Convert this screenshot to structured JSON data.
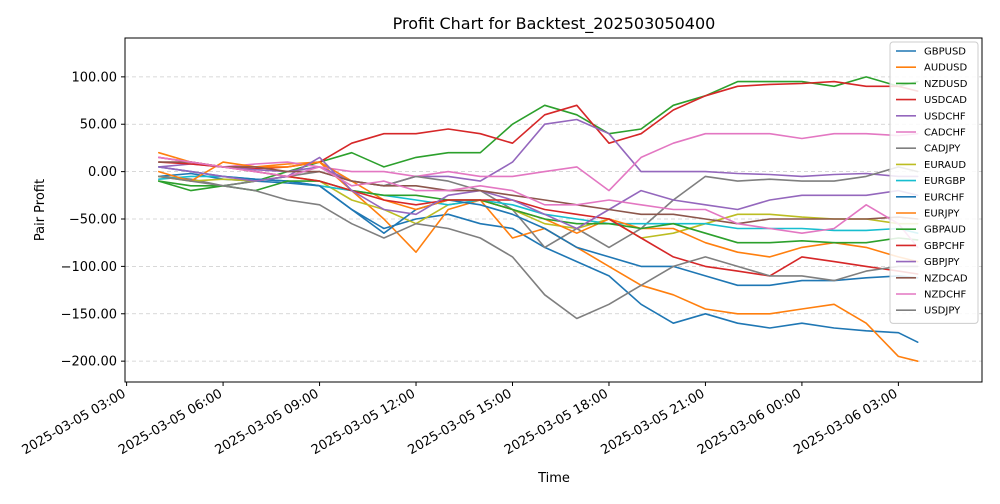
{
  "chart_data": {
    "type": "line",
    "title": "Profit Chart for Backtest_202503050400",
    "xlabel": "Time",
    "ylabel": "Pair Profit",
    "x_unit": "hours since 2025-03-05 00:00",
    "xlim": [
      2.95,
      29.6
    ],
    "ylim": [
      -222,
      141
    ],
    "x_ticks": [
      {
        "label": "2025-03-05 03:00",
        "value": 3
      },
      {
        "label": "2025-03-05 06:00",
        "value": 6
      },
      {
        "label": "2025-03-05 09:00",
        "value": 9
      },
      {
        "label": "2025-03-05 12:00",
        "value": 12
      },
      {
        "label": "2025-03-05 15:00",
        "value": 15
      },
      {
        "label": "2025-03-05 18:00",
        "value": 18
      },
      {
        "label": "2025-03-05 21:00",
        "value": 21
      },
      {
        "label": "2025-03-06 00:00",
        "value": 24
      },
      {
        "label": "2025-03-06 03:00",
        "value": 27
      }
    ],
    "y_ticks": [
      {
        "label": "100.00",
        "value": 100
      },
      {
        "label": "50.00",
        "value": 50
      },
      {
        "label": "0.00",
        "value": 0
      },
      {
        "label": "−50.00",
        "value": -50
      },
      {
        "label": "−100.00",
        "value": -100
      },
      {
        "label": "−150.00",
        "value": -150
      },
      {
        "label": "−200.00",
        "value": -200
      }
    ],
    "grid": {
      "y": true,
      "x": false
    },
    "legend": {
      "placement": "top-right"
    },
    "series": [
      {
        "name": "GBPUSD",
        "color": "#1f77b4",
        "x": [
          4,
          5,
          6,
          7,
          8,
          9,
          10,
          11,
          12,
          13,
          14,
          15,
          16,
          17,
          18,
          19,
          20,
          21,
          22,
          23,
          24,
          25,
          26,
          27,
          27.6
        ],
        "y": [
          -5,
          -2,
          -8,
          -10,
          -12,
          -15,
          -40,
          -60,
          -50,
          -45,
          -55,
          -60,
          -80,
          -95,
          -110,
          -140,
          -160,
          -150,
          -160,
          -165,
          -160,
          -165,
          -168,
          -170,
          -180
        ]
      },
      {
        "name": "AUDUSD",
        "color": "#ff7f0e",
        "x": [
          4,
          5,
          6,
          7,
          8,
          9,
          10,
          11,
          12,
          13,
          14,
          15,
          16,
          17,
          18,
          19,
          20,
          21,
          22,
          23,
          24,
          25,
          26,
          27,
          27.6
        ],
        "y": [
          20,
          10,
          5,
          5,
          8,
          10,
          -20,
          -50,
          -85,
          -40,
          -30,
          -70,
          -60,
          -80,
          -100,
          -120,
          -130,
          -145,
          -150,
          -150,
          -145,
          -140,
          -160,
          -195,
          -200
        ]
      },
      {
        "name": "NZDUSD",
        "color": "#2ca02c",
        "x": [
          4,
          5,
          6,
          7,
          8,
          9,
          10,
          11,
          12,
          13,
          14,
          15,
          16,
          17,
          18,
          19,
          20,
          21,
          22,
          23,
          24,
          25,
          26,
          27,
          27.6
        ],
        "y": [
          -10,
          -20,
          -15,
          -10,
          0,
          10,
          20,
          5,
          15,
          20,
          20,
          50,
          70,
          60,
          40,
          45,
          70,
          80,
          95,
          95,
          95,
          90,
          100,
          90,
          95
        ]
      },
      {
        "name": "USDCAD",
        "color": "#d62728",
        "x": [
          4,
          5,
          6,
          7,
          8,
          9,
          10,
          11,
          12,
          13,
          14,
          15,
          16,
          17,
          18,
          19,
          20,
          21,
          22,
          23,
          24,
          25,
          26,
          27,
          27.6
        ],
        "y": [
          15,
          10,
          5,
          3,
          5,
          10,
          30,
          40,
          40,
          45,
          40,
          30,
          60,
          70,
          30,
          40,
          65,
          80,
          90,
          92,
          93,
          95,
          90,
          90,
          85
        ]
      },
      {
        "name": "USDCHF",
        "color": "#9467bd",
        "x": [
          4,
          5,
          6,
          7,
          8,
          9,
          10,
          11,
          12,
          13,
          14,
          15,
          16,
          17,
          18,
          19,
          20,
          21,
          22,
          23,
          24,
          25,
          26,
          27,
          27.6
        ],
        "y": [
          5,
          8,
          5,
          2,
          0,
          5,
          -10,
          -15,
          -5,
          -5,
          -10,
          10,
          50,
          55,
          40,
          0,
          0,
          0,
          -2,
          -3,
          -5,
          -3,
          -2,
          -5,
          -5
        ]
      },
      {
        "name": "CADCHF",
        "color": "#e377c2",
        "x": [
          4,
          5,
          6,
          7,
          8,
          9,
          10,
          11,
          12,
          13,
          14,
          15,
          16,
          17,
          18,
          19,
          20,
          21,
          22,
          23,
          24,
          25,
          26,
          27,
          27.6
        ],
        "y": [
          15,
          10,
          5,
          8,
          10,
          5,
          0,
          0,
          -5,
          0,
          -5,
          -5,
          0,
          5,
          -20,
          15,
          30,
          40,
          40,
          40,
          35,
          40,
          40,
          38,
          40
        ]
      },
      {
        "name": "CADJPY",
        "color": "#7f7f7f",
        "x": [
          4,
          5,
          6,
          7,
          8,
          9,
          10,
          11,
          12,
          13,
          14,
          15,
          16,
          17,
          18,
          19,
          20,
          21,
          22,
          23,
          24,
          25,
          26,
          27,
          27.6
        ],
        "y": [
          -5,
          -8,
          -15,
          -10,
          -5,
          0,
          -10,
          -15,
          -5,
          -10,
          -20,
          -40,
          -80,
          -60,
          -80,
          -60,
          -30,
          -5,
          -10,
          -8,
          -10,
          -10,
          -5,
          5,
          0
        ]
      },
      {
        "name": "EURAUD",
        "color": "#bcbd22",
        "x": [
          4,
          5,
          6,
          7,
          8,
          9,
          10,
          11,
          12,
          13,
          14,
          15,
          16,
          17,
          18,
          19,
          20,
          21,
          22,
          23,
          24,
          25,
          26,
          27,
          27.6
        ],
        "y": [
          -5,
          -10,
          -8,
          -10,
          -5,
          -10,
          -30,
          -40,
          -55,
          -35,
          -30,
          -40,
          -55,
          -60,
          -50,
          -70,
          -65,
          -55,
          -45,
          -45,
          -48,
          -50,
          -50,
          -55,
          -55
        ]
      },
      {
        "name": "EURGBP",
        "color": "#17becf",
        "x": [
          4,
          5,
          6,
          7,
          8,
          9,
          10,
          11,
          12,
          13,
          14,
          15,
          16,
          17,
          18,
          19,
          20,
          21,
          22,
          23,
          24,
          25,
          26,
          27,
          27.6
        ],
        "y": [
          -8,
          -5,
          -5,
          -8,
          -10,
          -15,
          -20,
          -25,
          -30,
          -35,
          -30,
          -35,
          -45,
          -50,
          -55,
          -55,
          -55,
          -55,
          -60,
          -60,
          -60,
          -62,
          -62,
          -60,
          -65
        ]
      },
      {
        "name": "EURCHF",
        "color": "#1f77b4",
        "x": [
          4,
          5,
          6,
          7,
          8,
          9,
          10,
          11,
          12,
          13,
          14,
          15,
          16,
          17,
          18,
          19,
          20,
          21,
          22,
          23,
          24,
          25,
          26,
          27,
          27.6
        ],
        "y": [
          5,
          0,
          -5,
          -8,
          -10,
          -15,
          -40,
          -65,
          -40,
          -30,
          -35,
          -45,
          -60,
          -80,
          -90,
          -100,
          -100,
          -110,
          -120,
          -120,
          -115,
          -115,
          -112,
          -110,
          -112
        ]
      },
      {
        "name": "EURJPY",
        "color": "#ff7f0e",
        "x": [
          4,
          5,
          6,
          7,
          8,
          9,
          10,
          11,
          12,
          13,
          14,
          15,
          16,
          17,
          18,
          19,
          20,
          21,
          22,
          23,
          24,
          25,
          26,
          27,
          27.6
        ],
        "y": [
          0,
          -10,
          10,
          5,
          5,
          10,
          -10,
          -30,
          -40,
          -30,
          -30,
          -40,
          -50,
          -65,
          -50,
          -60,
          -60,
          -75,
          -85,
          -90,
          -80,
          -75,
          -80,
          -90,
          -95
        ]
      },
      {
        "name": "GBPAUD",
        "color": "#2ca02c",
        "x": [
          4,
          5,
          6,
          7,
          8,
          9,
          10,
          11,
          12,
          13,
          14,
          15,
          16,
          17,
          18,
          19,
          20,
          21,
          22,
          23,
          24,
          25,
          26,
          27,
          27.6
        ],
        "y": [
          -10,
          -15,
          -15,
          -20,
          -10,
          -10,
          -20,
          -25,
          -25,
          -30,
          -30,
          -40,
          -50,
          -55,
          -55,
          -60,
          -55,
          -65,
          -75,
          -75,
          -73,
          -75,
          -75,
          -70,
          -72
        ]
      },
      {
        "name": "GBPCHF",
        "color": "#d62728",
        "x": [
          4,
          5,
          6,
          7,
          8,
          9,
          10,
          11,
          12,
          13,
          14,
          15,
          16,
          17,
          18,
          19,
          20,
          21,
          22,
          23,
          24,
          25,
          26,
          27,
          27.6
        ],
        "y": [
          10,
          8,
          5,
          0,
          -5,
          -10,
          -20,
          -30,
          -35,
          -30,
          -30,
          -30,
          -40,
          -45,
          -50,
          -70,
          -90,
          -100,
          -105,
          -110,
          -90,
          -95,
          -100,
          -105,
          -108
        ]
      },
      {
        "name": "GBPJPY",
        "color": "#9467bd",
        "x": [
          4,
          5,
          6,
          7,
          8,
          9,
          10,
          11,
          12,
          13,
          14,
          15,
          16,
          17,
          18,
          19,
          20,
          21,
          22,
          23,
          24,
          25,
          26,
          27,
          27.6
        ],
        "y": [
          5,
          0,
          -5,
          -10,
          -5,
          15,
          -20,
          -40,
          -45,
          -25,
          -20,
          -30,
          -45,
          -60,
          -40,
          -20,
          -30,
          -35,
          -40,
          -30,
          -25,
          -25,
          -25,
          -20,
          -25
        ]
      },
      {
        "name": "NZDCAD",
        "color": "#8c564b",
        "x": [
          4,
          5,
          6,
          7,
          8,
          9,
          10,
          11,
          12,
          13,
          14,
          15,
          16,
          17,
          18,
          19,
          20,
          21,
          22,
          23,
          24,
          25,
          26,
          27,
          27.6
        ],
        "y": [
          10,
          10,
          5,
          5,
          0,
          0,
          -10,
          -15,
          -15,
          -20,
          -20,
          -25,
          -30,
          -35,
          -40,
          -45,
          -45,
          -50,
          -55,
          -50,
          -50,
          -50,
          -50,
          -48,
          -50
        ]
      },
      {
        "name": "NZDCHF",
        "color": "#e377c2",
        "x": [
          4,
          5,
          6,
          7,
          8,
          9,
          10,
          11,
          12,
          13,
          14,
          15,
          16,
          17,
          18,
          19,
          20,
          21,
          22,
          23,
          24,
          25,
          26,
          27,
          27.6
        ],
        "y": [
          15,
          10,
          5,
          0,
          -5,
          5,
          -15,
          -10,
          -20,
          -20,
          -15,
          -20,
          -35,
          -35,
          -30,
          -35,
          -40,
          -40,
          -55,
          -60,
          -65,
          -60,
          -35,
          -55,
          -80
        ]
      },
      {
        "name": "USDJPY",
        "color": "#7f7f7f",
        "x": [
          4,
          5,
          6,
          7,
          8,
          9,
          10,
          11,
          12,
          13,
          14,
          15,
          16,
          17,
          18,
          19,
          20,
          21,
          22,
          23,
          24,
          25,
          26,
          27,
          27.6
        ],
        "y": [
          -5,
          -10,
          -15,
          -20,
          -30,
          -35,
          -55,
          -70,
          -55,
          -60,
          -70,
          -90,
          -130,
          -155,
          -140,
          -120,
          -100,
          -90,
          -100,
          -110,
          -110,
          -115,
          -105,
          -100,
          -100
        ]
      }
    ]
  }
}
